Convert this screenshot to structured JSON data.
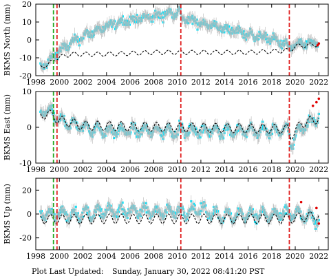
{
  "footer": {
    "label": "Plot Last Updated:",
    "datetime": "Sunday, January 30, 2022 08:41:20 PST"
  },
  "colors": {
    "observations": "#00e5ff",
    "error_bars": "#b8b8b8",
    "model": "#000000",
    "events_red": "#e02020",
    "event_green": "#22aa22",
    "recent_points": "#e00000"
  },
  "chart_data": [
    {
      "type": "scatter",
      "id": "north",
      "ylabel": "BKMS North (mm)",
      "xlim": [
        1998,
        2022.8
      ],
      "ylim": [
        -20,
        20
      ],
      "yticks": [
        -20,
        -10,
        0,
        10,
        20
      ],
      "xticks": [
        1998,
        2000,
        2002,
        2004,
        2006,
        2008,
        2010,
        2012,
        2014,
        2016,
        2018,
        2020,
        2022
      ],
      "tick_labels_x": true,
      "series": [
        {
          "role": "observations",
          "x": [
            1998.4,
            1999.0,
            1999.8,
            2000.5,
            2001.0,
            2001.5,
            2002.0,
            2002.5,
            2003.0,
            2004.0,
            2005.0,
            2006.0,
            2007.0,
            2008.0,
            2009.0,
            2010.2,
            2010.4,
            2011.0,
            2012.0,
            2013.0,
            2014.0,
            2015.0,
            2016.0,
            2017.0,
            2018.0,
            2019.0,
            2019.5,
            2019.6,
            2020.0,
            2021.0,
            2021.9
          ],
          "y": [
            -15.0,
            -13.0,
            -7.0,
            -4.0,
            -2.0,
            0.0,
            2.0,
            3.5,
            5.0,
            7.0,
            10.0,
            11.0,
            12.0,
            13.0,
            14.5,
            16.0,
            12.0,
            11.0,
            9.5,
            8.0,
            6.0,
            5.0,
            3.0,
            2.0,
            0.5,
            -2.0,
            -4.0,
            -4.0,
            -3.0,
            -2.0,
            -2.0
          ]
        },
        {
          "role": "model",
          "x": [
            1998.4,
            1999.0,
            1999.8,
            2001.0,
            2004.0,
            2008.0,
            2010.2,
            2013.0,
            2016.0,
            2019.5,
            2020.0,
            2022.0
          ],
          "y": [
            -15.0,
            -14.0,
            -10.0,
            -8.0,
            -8.0,
            -7.0,
            -7.0,
            -7.0,
            -7.0,
            -6.0,
            -3.5,
            -2.5
          ],
          "seasonal_amplitude": 1.2
        }
      ],
      "recent_points": {
        "x": [
          2021.9,
          2022.0
        ],
        "y": [
          -3.0,
          -2.0
        ]
      }
    },
    {
      "type": "scatter",
      "id": "east",
      "ylabel": "BKMS East (mm)",
      "xlim": [
        1998,
        2022.8
      ],
      "ylim": [
        -10,
        10
      ],
      "yticks": [
        -10,
        0,
        10
      ],
      "xticks": [
        1998,
        2000,
        2002,
        2004,
        2006,
        2008,
        2010,
        2012,
        2014,
        2016,
        2018,
        2020,
        2022
      ],
      "tick_labels_x": true,
      "series": [
        {
          "role": "observations",
          "x": [
            1998.4,
            1999.0,
            2000.0,
            2002.0,
            2004.0,
            2006.0,
            2008.0,
            2010.0,
            2012.0,
            2014.0,
            2016.0,
            2018.0,
            2019.5,
            2019.6,
            2020.5,
            2021.5,
            2022.0
          ],
          "y": [
            4.0,
            5.0,
            2.0,
            0.0,
            -1.0,
            -1.0,
            -1.0,
            -1.0,
            -1.0,
            -1.0,
            -1.0,
            -1.0,
            -1.0,
            -5.0,
            0.0,
            2.0,
            3.0
          ]
        },
        {
          "role": "model",
          "x": [
            1998.4,
            1999.0,
            2000.0,
            2002.0,
            2010.0,
            2019.5,
            2019.6,
            2020.5,
            2021.5,
            2022.0
          ],
          "y": [
            3.0,
            4.0,
            2.0,
            0.5,
            0.0,
            -0.5,
            -2.5,
            1.0,
            2.0,
            2.5
          ],
          "seasonal_amplitude": 1.3
        }
      ],
      "recent_points": {
        "x": [
          2021.5,
          2021.8,
          2022.0
        ],
        "y": [
          6.0,
          7.0,
          8.0
        ]
      }
    },
    {
      "type": "scatter",
      "id": "up",
      "ylabel": "BKMS Up (mm)",
      "xlim": [
        1998,
        2022.8
      ],
      "ylim": [
        -30,
        30
      ],
      "yticks": [
        -20,
        0,
        20
      ],
      "xticks": [
        1998,
        2000,
        2002,
        2004,
        2006,
        2008,
        2010,
        2012,
        2014,
        2016,
        2018,
        2020,
        2022
      ],
      "tick_labels_x": true,
      "series": [
        {
          "role": "observations",
          "x": [
            1998.4,
            2000.0,
            2002.0,
            2004.0,
            2006.0,
            2008.0,
            2010.0,
            2012.0,
            2014.0,
            2016.0,
            2018.0,
            2020.0,
            2022.0
          ],
          "y": [
            0.0,
            0.0,
            0.0,
            2.0,
            3.0,
            2.0,
            2.0,
            4.0,
            -2.0,
            0.0,
            -1.0,
            0.0,
            -5.0
          ]
        },
        {
          "role": "model",
          "x": [
            1998.4,
            2000.0,
            2004.0,
            2010.0,
            2014.0,
            2019.5,
            2022.0
          ],
          "y": [
            -4.0,
            -4.5,
            -4.0,
            -4.0,
            -4.0,
            -4.0,
            -1.0
          ],
          "seasonal_amplitude": 4.0
        }
      ],
      "recent_points": {
        "x": [
          2020.5,
          2021.8,
          2022.0
        ],
        "y": [
          10.0,
          5.0,
          -8.0
        ]
      }
    }
  ],
  "events": {
    "green_dashed": [
      1999.5
    ],
    "red_dashed": [
      1999.8,
      2010.3,
      2019.5
    ]
  }
}
